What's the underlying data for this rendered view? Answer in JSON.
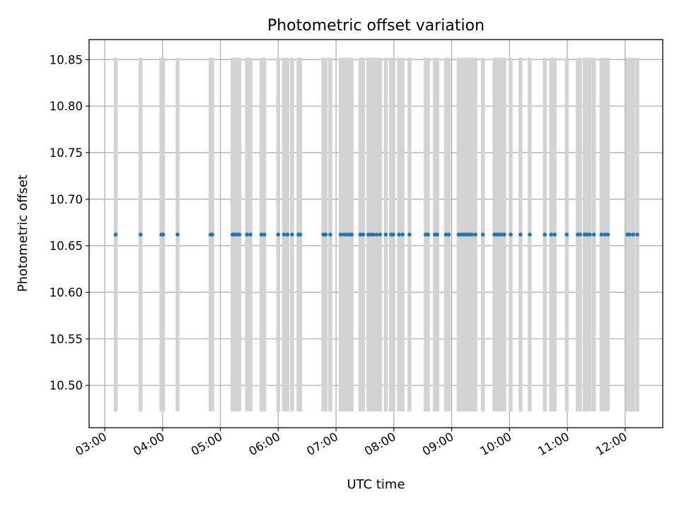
{
  "chart_data": {
    "type": "scatter",
    "title": "Photometric offset variation",
    "xlabel": "UTC time",
    "ylabel": "Photometric offset",
    "x_unit": "hours (UTC)",
    "xlim": [
      2.73,
      12.65
    ],
    "ylim": [
      10.4545,
      10.8715
    ],
    "x_ticks": [
      {
        "value": 3,
        "label": "03:00"
      },
      {
        "value": 4,
        "label": "04:00"
      },
      {
        "value": 5,
        "label": "05:00"
      },
      {
        "value": 6,
        "label": "06:00"
      },
      {
        "value": 7,
        "label": "07:00"
      },
      {
        "value": 8,
        "label": "08:00"
      },
      {
        "value": 9,
        "label": "09:00"
      },
      {
        "value": 10,
        "label": "10:00"
      },
      {
        "value": 11,
        "label": "11:00"
      },
      {
        "value": 12,
        "label": "12:00"
      }
    ],
    "y_ticks": [
      {
        "value": 10.5,
        "label": "10.50"
      },
      {
        "value": 10.55,
        "label": "10.55"
      },
      {
        "value": 10.6,
        "label": "10.60"
      },
      {
        "value": 10.65,
        "label": "10.65"
      },
      {
        "value": 10.7,
        "label": "10.70"
      },
      {
        "value": 10.75,
        "label": "10.75"
      },
      {
        "value": 10.8,
        "label": "10.80"
      },
      {
        "value": 10.85,
        "label": "10.85"
      }
    ],
    "grid": true,
    "x_tick_rotation": "30 degrees",
    "series": [
      {
        "marker": "dot",
        "color": "#1f77b4",
        "y": 10.662,
        "x": [
          3.19,
          3.62,
          3.98,
          4.01,
          4.26,
          4.83,
          4.86,
          5.21,
          5.24,
          5.28,
          5.33,
          5.46,
          5.52,
          5.71,
          5.76,
          6.0,
          6.1,
          6.16,
          6.24,
          6.35,
          6.38,
          6.78,
          6.82,
          6.9,
          7.08,
          7.14,
          7.19,
          7.24,
          7.27,
          7.42,
          7.47,
          7.56,
          7.6,
          7.64,
          7.7,
          7.76,
          7.86,
          7.95,
          7.99,
          8.09,
          8.15,
          8.27,
          8.55,
          8.59,
          8.71,
          8.75,
          8.9,
          8.95,
          9.12,
          9.16,
          9.2,
          9.24,
          9.27,
          9.31,
          9.35,
          9.41,
          9.54,
          9.74,
          9.78,
          9.82,
          9.86,
          9.91,
          10.02,
          10.19,
          10.35,
          10.61,
          10.72,
          10.78,
          10.99,
          11.18,
          11.22,
          11.3,
          11.34,
          11.39,
          11.46,
          11.59,
          11.65,
          11.7,
          12.04,
          12.08,
          12.14,
          12.21
        ]
      }
    ],
    "bands": {
      "color": "#d3d3d3",
      "y_low": 10.472,
      "y_high": 10.852,
      "x": [
        3.19,
        3.62,
        3.98,
        4.01,
        4.26,
        4.83,
        4.86,
        5.21,
        5.24,
        5.28,
        5.33,
        5.46,
        5.52,
        5.71,
        5.76,
        6.0,
        6.1,
        6.16,
        6.24,
        6.35,
        6.38,
        6.78,
        6.82,
        6.9,
        7.08,
        7.14,
        7.19,
        7.24,
        7.27,
        7.42,
        7.47,
        7.56,
        7.6,
        7.64,
        7.7,
        7.76,
        7.86,
        7.95,
        7.99,
        8.09,
        8.15,
        8.27,
        8.55,
        8.59,
        8.71,
        8.75,
        8.9,
        8.95,
        9.12,
        9.16,
        9.2,
        9.24,
        9.27,
        9.31,
        9.35,
        9.41,
        9.54,
        9.74,
        9.78,
        9.82,
        9.86,
        9.91,
        10.02,
        10.19,
        10.35,
        10.61,
        10.72,
        10.78,
        10.99,
        11.18,
        11.22,
        11.3,
        11.34,
        11.39,
        11.46,
        11.59,
        11.65,
        11.7,
        12.04,
        12.08,
        12.14,
        12.21
      ]
    }
  }
}
